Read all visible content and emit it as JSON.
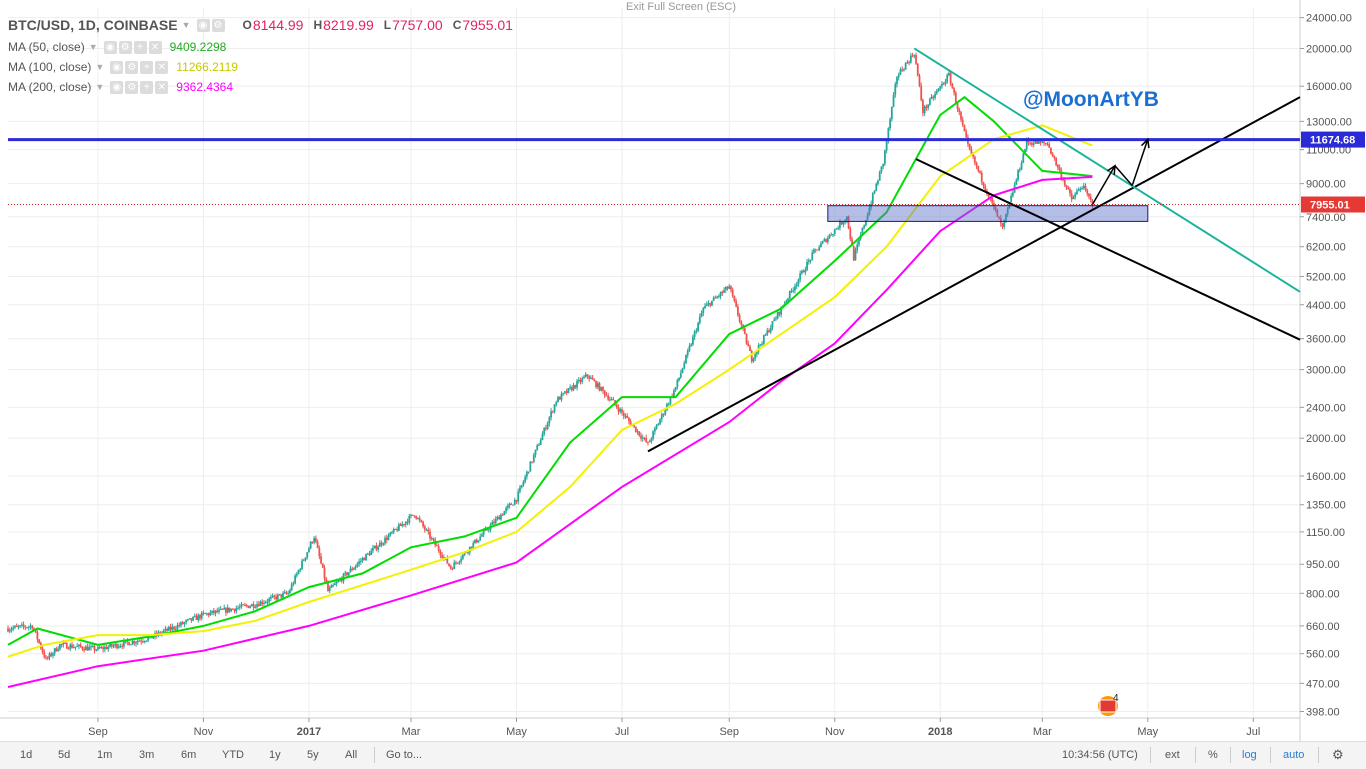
{
  "header": {
    "symbol": "BTC/USD, 1D, COINBASE",
    "ohlc": [
      {
        "k": "O",
        "v": "8144.99"
      },
      {
        "k": "H",
        "v": "8219.99"
      },
      {
        "k": "L",
        "v": "7757.00"
      },
      {
        "k": "C",
        "v": "7955.01"
      }
    ]
  },
  "indicators": [
    {
      "label": "MA (50, close)",
      "value": "9409.2298",
      "color": "#00dd00"
    },
    {
      "label": "MA (100, close)",
      "value": "11266.2119",
      "color": "#f2f200"
    },
    {
      "label": "MA (200, close)",
      "value": "9362.4364",
      "color": "#ff00ff"
    }
  ],
  "exit_fullscreen": "Exit Full Screen (ESC)",
  "watermark": "@MoonArtYB",
  "price_tags": {
    "resistance": "11674.68",
    "last": "7955.01"
  },
  "badge_count": "4",
  "chart_data": {
    "type": "candlestick",
    "scale": "log",
    "y_ticks": [
      398,
      470,
      560,
      660,
      800,
      950,
      1150,
      1350,
      1600,
      2000,
      2400,
      3000,
      3600,
      4400,
      5200,
      6200,
      7400,
      9000,
      11000,
      13000,
      16000,
      20000,
      24000
    ],
    "y_tick_labels": [
      "398.00",
      "470.00",
      "560.00",
      "660.00",
      "800.00",
      "950.00",
      "1150.00",
      "1350.00",
      "1600.00",
      "2000.00",
      "2400.00",
      "3000.00",
      "3600.00",
      "4400.00",
      "5200.00",
      "6200.00",
      "7400.00",
      "9000.00",
      "11000.00",
      "13000.00",
      "16000.00",
      "20000.00",
      "24000.00"
    ],
    "x_ticks": [
      "Sep",
      "Nov",
      "2017",
      "Mar",
      "May",
      "Jul",
      "Sep",
      "Nov",
      "2018",
      "Mar",
      "May",
      "Jul"
    ],
    "x_range": [
      "2016-07-11",
      "2018-07-28"
    ],
    "close_points": [
      [
        "2016-07-11",
        650
      ],
      [
        "2016-07-25",
        660
      ],
      [
        "2016-08-02",
        540
      ],
      [
        "2016-08-10",
        590
      ],
      [
        "2016-09-01",
        575
      ],
      [
        "2016-10-01",
        615
      ],
      [
        "2016-11-01",
        705
      ],
      [
        "2016-12-01",
        750
      ],
      [
        "2016-12-20",
        800
      ],
      [
        "2017-01-04",
        1120
      ],
      [
        "2017-01-12",
        810
      ],
      [
        "2017-02-01",
        980
      ],
      [
        "2017-03-03",
        1280
      ],
      [
        "2017-03-24",
        930
      ],
      [
        "2017-04-15",
        1180
      ],
      [
        "2017-05-01",
        1400
      ],
      [
        "2017-05-24",
        2500
      ],
      [
        "2017-06-11",
        2900
      ],
      [
        "2017-06-25",
        2500
      ],
      [
        "2017-07-16",
        1930
      ],
      [
        "2017-08-01",
        2700
      ],
      [
        "2017-08-17",
        4300
      ],
      [
        "2017-09-01",
        4900
      ],
      [
        "2017-09-14",
        3200
      ],
      [
        "2017-10-01",
        4300
      ],
      [
        "2017-10-20",
        6000
      ],
      [
        "2017-11-08",
        7400
      ],
      [
        "2017-11-12",
        5800
      ],
      [
        "2017-11-29",
        10200
      ],
      [
        "2017-12-07",
        17000
      ],
      [
        "2017-12-17",
        19500
      ],
      [
        "2017-12-22",
        13800
      ],
      [
        "2018-01-06",
        17100
      ],
      [
        "2018-01-17",
        11200
      ],
      [
        "2018-02-06",
        6900
      ],
      [
        "2018-02-20",
        11500
      ],
      [
        "2018-03-04",
        11400
      ],
      [
        "2018-03-18",
        8200
      ],
      [
        "2018-03-24",
        8900
      ],
      [
        "2018-03-30",
        7955
      ]
    ],
    "moving_averages": [
      {
        "name": "MA (50, close)",
        "color": "#00dd00",
        "points": [
          [
            "2016-07-11",
            590
          ],
          [
            "2016-07-28",
            650
          ],
          [
            "2016-09-01",
            590
          ],
          [
            "2016-10-01",
            620
          ],
          [
            "2016-11-01",
            660
          ],
          [
            "2016-12-01",
            720
          ],
          [
            "2017-01-01",
            830
          ],
          [
            "2017-02-01",
            900
          ],
          [
            "2017-03-01",
            1050
          ],
          [
            "2017-04-01",
            1120
          ],
          [
            "2017-05-01",
            1250
          ],
          [
            "2017-06-01",
            1950
          ],
          [
            "2017-07-01",
            2550
          ],
          [
            "2017-08-01",
            2550
          ],
          [
            "2017-09-01",
            3700
          ],
          [
            "2017-10-01",
            4300
          ],
          [
            "2017-11-01",
            5700
          ],
          [
            "2017-12-01",
            7600
          ],
          [
            "2018-01-01",
            13500
          ],
          [
            "2018-01-15",
            15000
          ],
          [
            "2018-02-01",
            13000
          ],
          [
            "2018-03-01",
            9700
          ],
          [
            "2018-03-30",
            9409
          ]
        ]
      },
      {
        "name": "MA (100, close)",
        "color": "#f2f200",
        "points": [
          [
            "2016-07-11",
            550
          ],
          [
            "2016-08-01",
            590
          ],
          [
            "2016-09-01",
            625
          ],
          [
            "2016-10-01",
            625
          ],
          [
            "2016-11-01",
            640
          ],
          [
            "2016-12-01",
            680
          ],
          [
            "2017-01-01",
            760
          ],
          [
            "2017-02-01",
            840
          ],
          [
            "2017-03-01",
            920
          ],
          [
            "2017-04-01",
            1020
          ],
          [
            "2017-05-01",
            1150
          ],
          [
            "2017-06-01",
            1500
          ],
          [
            "2017-07-01",
            2100
          ],
          [
            "2017-08-01",
            2450
          ],
          [
            "2017-09-01",
            3000
          ],
          [
            "2017-10-01",
            3700
          ],
          [
            "2017-11-01",
            4600
          ],
          [
            "2017-12-01",
            6200
          ],
          [
            "2018-01-01",
            9400
          ],
          [
            "2018-02-01",
            11700
          ],
          [
            "2018-03-01",
            12700
          ],
          [
            "2018-03-30",
            11266
          ]
        ]
      },
      {
        "name": "MA (200, close)",
        "color": "#ff00ff",
        "points": [
          [
            "2016-07-11",
            460
          ],
          [
            "2016-09-01",
            520
          ],
          [
            "2016-11-01",
            570
          ],
          [
            "2017-01-01",
            660
          ],
          [
            "2017-03-01",
            790
          ],
          [
            "2017-05-01",
            960
          ],
          [
            "2017-07-01",
            1500
          ],
          [
            "2017-09-01",
            2200
          ],
          [
            "2017-10-01",
            2800
          ],
          [
            "2017-11-01",
            3500
          ],
          [
            "2017-12-01",
            4800
          ],
          [
            "2018-01-01",
            6800
          ],
          [
            "2018-02-01",
            8400
          ],
          [
            "2018-03-01",
            9200
          ],
          [
            "2018-03-30",
            9362
          ]
        ]
      }
    ],
    "trendlines": [
      {
        "color": "#000000",
        "from": [
          "2017-07-16",
          1850
        ],
        "to": [
          "2018-07-28",
          15000
        ]
      },
      {
        "color": "#000000",
        "from": [
          "2017-12-18",
          10400
        ],
        "to": [
          "2018-07-28",
          3580
        ]
      },
      {
        "color": "#18b49a",
        "from": [
          "2017-12-17",
          20000
        ],
        "to": [
          "2018-07-28",
          4750
        ]
      },
      {
        "color": "#2a2ad6",
        "from": [
          "2016-07-11",
          11674.68
        ],
        "to": [
          "2018-07-28",
          11674.68
        ]
      }
    ],
    "support_zone": {
      "from": "2017-10-28",
      "to": "2018-05-01",
      "low": 7200,
      "high": 7900
    },
    "projection_path": [
      [
        "2018-03-30",
        7955
      ],
      [
        "2018-04-12",
        10000
      ],
      [
        "2018-04-22",
        8900
      ],
      [
        "2018-05-01",
        11700
      ]
    ]
  },
  "bottom_bar": {
    "ranges": [
      "1d",
      "5d",
      "1m",
      "3m",
      "6m",
      "YTD",
      "1y",
      "5y",
      "All"
    ],
    "goto": "Go to...",
    "clock": "10:34:56 (UTC)",
    "ext": "ext",
    "percent": "%",
    "log": "log",
    "auto": "auto"
  }
}
